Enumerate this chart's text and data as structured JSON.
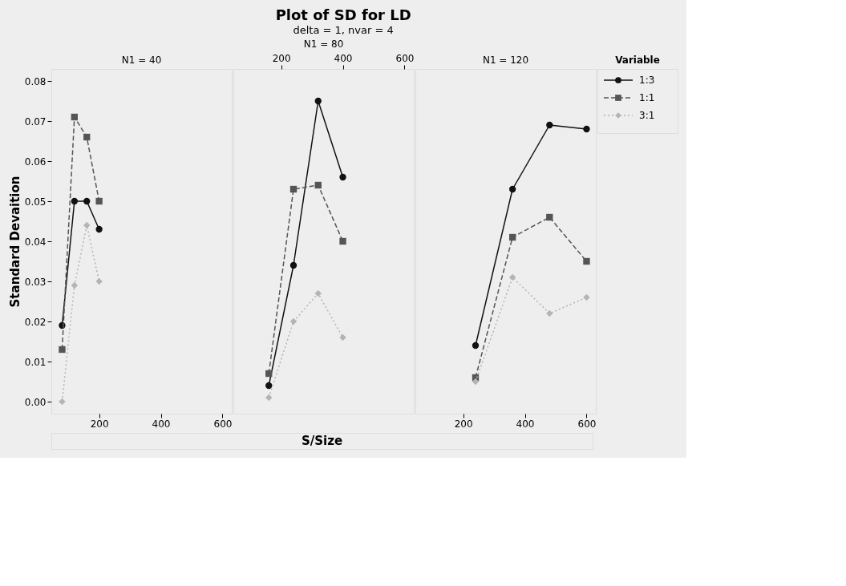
{
  "chart_data": [
    {
      "type": "line",
      "grid": false,
      "ylabel": "Standard Devaition",
      "legend_title": "Variable",
      "legend": "right",
      "annotations": [
        "N1 = 40"
      ],
      "xlim": [
        45,
        630
      ],
      "xticks": [
        200,
        400,
        600
      ],
      "ylim": [
        -0.003,
        0.083
      ],
      "yticks": [
        {
          "value": 0,
          "label": "0.00"
        },
        0.01,
        0.02,
        0.03,
        0.04,
        0.05,
        0.06,
        0.07,
        0.08
      ],
      "series": [
        {
          "name": "1:3",
          "color": "#111111",
          "marker": "circle",
          "line_style": "solid",
          "x": [
            80,
            120,
            160,
            200
          ],
          "values": [
            0.019,
            0.05,
            0.05,
            0.043
          ]
        },
        {
          "name": "1:1",
          "color": "#555555",
          "marker": "square",
          "line_style": "dashed",
          "x": [
            80,
            120,
            160,
            200
          ],
          "values": [
            0.013,
            0.071,
            0.066,
            0.05
          ]
        },
        {
          "name": "3:1",
          "color": "#b4b4b4",
          "marker": "diamond",
          "line_style": "dotted",
          "x": [
            80,
            120,
            160,
            200
          ],
          "values": [
            0.0,
            0.029,
            0.044,
            0.03
          ]
        }
      ]
    },
    {
      "type": "line",
      "title": "Plot of SD for LD",
      "subtitle": "delta = 1, nvar = 4",
      "grid": false,
      "xlabel": "S/Size",
      "annotations": [
        "N1 = 80"
      ],
      "xlim": [
        45,
        630
      ],
      "xticks": [
        200,
        400,
        600
      ],
      "ylim": [
        -0.003,
        0.083
      ],
      "tick_labels": "x",
      "series": [
        {
          "name": "1:3",
          "color": "#111111",
          "marker": "circle",
          "line_style": "solid",
          "x": [
            160,
            240,
            320,
            400
          ],
          "values": [
            0.004,
            0.034,
            0.075,
            0.056
          ]
        },
        {
          "name": "1:1",
          "color": "#555555",
          "marker": "square",
          "line_style": "dashed",
          "x": [
            160,
            240,
            320,
            400
          ],
          "values": [
            0.007,
            0.053,
            0.054,
            0.04
          ]
        },
        {
          "name": "3:1",
          "color": "#b4b4b4",
          "marker": "diamond",
          "line_style": "dotted",
          "x": [
            160,
            240,
            320,
            400
          ],
          "values": [
            0.001,
            0.02,
            0.027,
            0.016
          ]
        }
      ]
    },
    {
      "type": "line",
      "grid": false,
      "annotations": [
        "N1 = 120"
      ],
      "xlim": [
        45,
        630
      ],
      "xticks": [
        200,
        400,
        600
      ],
      "ylim": [
        -0.003,
        0.083
      ],
      "tick_labels": "x",
      "series": [
        {
          "name": "1:3",
          "color": "#111111",
          "marker": "circle",
          "line_style": "solid",
          "x": [
            240,
            360,
            480,
            600
          ],
          "values": [
            0.014,
            0.053,
            0.069,
            0.068
          ]
        },
        {
          "name": "1:1",
          "color": "#555555",
          "marker": "square",
          "line_style": "dashed",
          "x": [
            240,
            360,
            480,
            600
          ],
          "values": [
            0.006,
            0.041,
            0.046,
            0.035
          ]
        },
        {
          "name": "3:1",
          "color": "#b4b4b4",
          "marker": "diamond",
          "line_style": "dotted",
          "x": [
            240,
            360,
            480,
            600
          ],
          "values": [
            0.005,
            0.031,
            0.022,
            0.026
          ]
        }
      ]
    }
  ]
}
